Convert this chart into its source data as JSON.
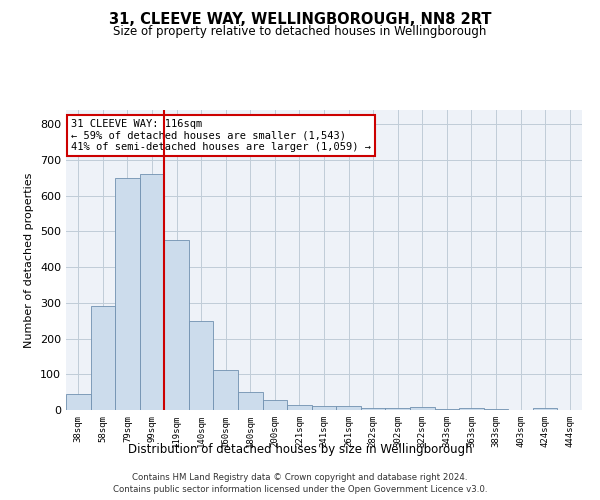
{
  "title": "31, CLEEVE WAY, WELLINGBOROUGH, NN8 2RT",
  "subtitle": "Size of property relative to detached houses in Wellingborough",
  "xlabel": "Distribution of detached houses by size in Wellingborough",
  "ylabel": "Number of detached properties",
  "bar_color": "#ccdcec",
  "bar_edge_color": "#7090b0",
  "grid_color": "#c0ccd8",
  "background_color": "#eef2f8",
  "vline_color": "#cc0000",
  "vline_x_index": 4,
  "annotation_text": "31 CLEEVE WAY: 116sqm\n← 59% of detached houses are smaller (1,543)\n41% of semi-detached houses are larger (1,059) →",
  "annotation_box_color": "#ffffff",
  "annotation_box_edge_color": "#cc0000",
  "categories": [
    "38sqm",
    "58sqm",
    "79sqm",
    "99sqm",
    "119sqm",
    "140sqm",
    "160sqm",
    "180sqm",
    "200sqm",
    "221sqm",
    "241sqm",
    "261sqm",
    "282sqm",
    "302sqm",
    "322sqm",
    "343sqm",
    "363sqm",
    "383sqm",
    "403sqm",
    "424sqm",
    "444sqm"
  ],
  "values": [
    45,
    290,
    650,
    660,
    477,
    250,
    113,
    50,
    27,
    14,
    12,
    12,
    7,
    5,
    8,
    4,
    5,
    2,
    0,
    6,
    0
  ],
  "ylim": [
    0,
    840
  ],
  "yticks": [
    0,
    100,
    200,
    300,
    400,
    500,
    600,
    700,
    800
  ],
  "footer1": "Contains HM Land Registry data © Crown copyright and database right 2024.",
  "footer2": "Contains public sector information licensed under the Open Government Licence v3.0."
}
